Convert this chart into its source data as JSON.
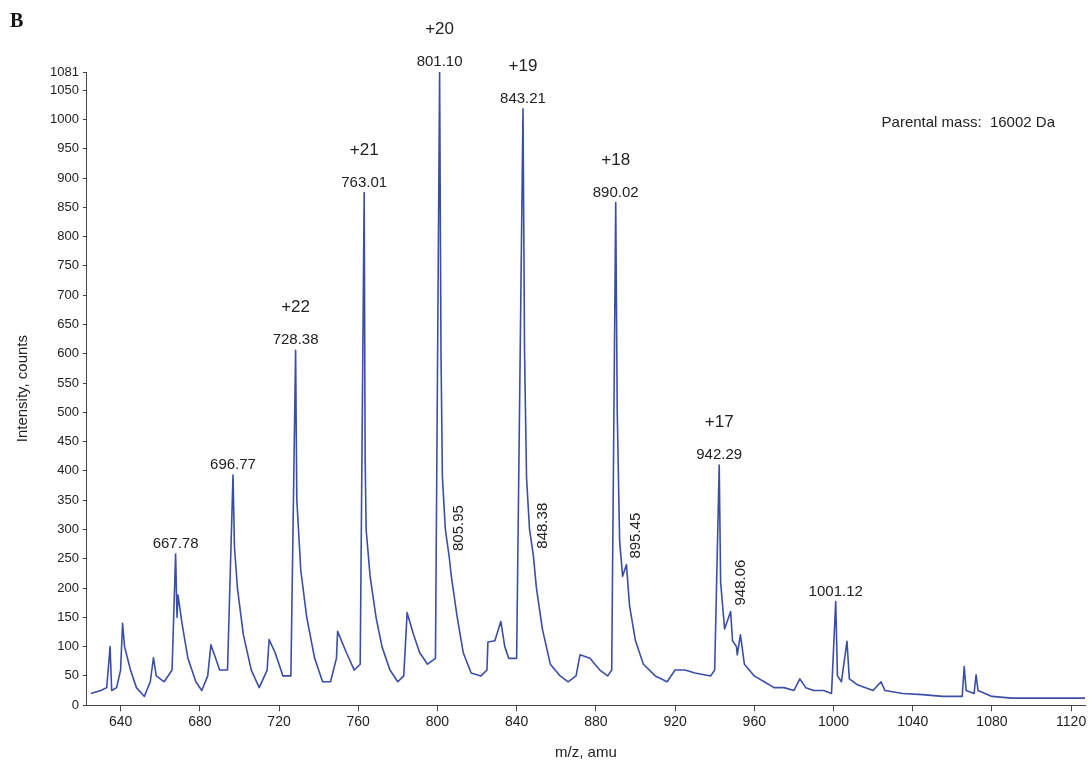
{
  "chart_data": {
    "type": "line",
    "title": "B",
    "xlabel": "m/z, amu",
    "ylabel": "Intensity, counts",
    "x": [
      625,
      630,
      633,
      634.7,
      635.5,
      638,
      640,
      641,
      642,
      645,
      648,
      652,
      655,
      656.6,
      658,
      662,
      666,
      667.78,
      668.5,
      669,
      671,
      674,
      678,
      681,
      684,
      685.6,
      688,
      690,
      694,
      696.77,
      697.5,
      699,
      702,
      706,
      710,
      714,
      715,
      718,
      722,
      726,
      728.38,
      729,
      731,
      734,
      738,
      742,
      746,
      749,
      749.6,
      754,
      758,
      761,
      763.01,
      763.5,
      764,
      766,
      769,
      772,
      776,
      780,
      783,
      784.7,
      788,
      791,
      795,
      799,
      801.1,
      801.8,
      802.5,
      804,
      805.95,
      807,
      810,
      813,
      817,
      822,
      825,
      825.5,
      829,
      832,
      834,
      836,
      840,
      843.21,
      844,
      845,
      846.5,
      848.38,
      850,
      853,
      857,
      862,
      866,
      870,
      872,
      877,
      882,
      886,
      888,
      890.02,
      890.8,
      892,
      893.5,
      895.45,
      897,
      900,
      904,
      910,
      916,
      920,
      925,
      930,
      938,
      940,
      942.29,
      943,
      945,
      948.06,
      949,
      951,
      951.4,
      953,
      955,
      960,
      965,
      970,
      975,
      980,
      983,
      986,
      990,
      995,
      999,
      1001.12,
      1002,
      1004,
      1006.8,
      1008,
      1012,
      1020,
      1024,
      1026,
      1035,
      1045,
      1055,
      1060,
      1065,
      1066,
      1067,
      1071,
      1072,
      1073,
      1080,
      1090,
      1100,
      1110,
      1120,
      1127
    ],
    "series": [
      {
        "color": "#3b4ea6",
        "values": [
          20,
          25,
          30,
          100,
          25,
          30,
          60,
          140,
          100,
          60,
          30,
          15,
          40,
          81,
          50,
          40,
          60,
          258,
          150,
          188,
          140,
          80,
          40,
          25,
          50,
          103,
          80,
          60,
          60,
          393,
          270,
          200,
          120,
          60,
          30,
          60,
          112,
          90,
          50,
          50,
          606,
          350,
          230,
          150,
          80,
          40,
          40,
          80,
          126,
          90,
          60,
          70,
          875,
          420,
          300,
          220,
          150,
          100,
          60,
          40,
          50,
          158,
          120,
          90,
          70,
          80,
          1081,
          600,
          390,
          300,
          253,
          220,
          150,
          90,
          55,
          50,
          60,
          108,
          110,
          143,
          100,
          80,
          80,
          1018,
          600,
          388,
          300,
          257,
          200,
          130,
          70,
          50,
          40,
          50,
          86,
          80,
          60,
          50,
          60,
          858,
          500,
          280,
          220,
          240,
          170,
          110,
          70,
          50,
          40,
          60,
          60,
          55,
          50,
          60,
          410,
          210,
          130,
          160,
          110,
          100,
          86,
          120,
          70,
          50,
          40,
          30,
          30,
          25,
          45,
          30,
          25,
          25,
          20,
          177,
          50,
          40,
          109,
          45,
          35,
          25,
          40,
          25,
          20,
          18,
          15,
          15,
          15,
          66,
          25,
          20,
          52,
          25,
          15,
          12,
          12,
          12,
          12,
          12
        ]
      }
    ],
    "xlim": [
      623,
      1127
    ],
    "xticks": [
      640,
      680,
      720,
      760,
      800,
      840,
      880,
      920,
      960,
      1000,
      1040,
      1080,
      1120
    ],
    "ylim": [
      0,
      1081
    ],
    "yticks": [
      0,
      50,
      100,
      150,
      200,
      250,
      300,
      350,
      400,
      450,
      500,
      550,
      600,
      650,
      700,
      750,
      800,
      850,
      900,
      950,
      1000,
      1050,
      1081
    ],
    "grid": false,
    "legend": false,
    "marker": "none",
    "line_style": "solid",
    "annotations": [
      "Parental mass:  16002 Da",
      {
        "text": "667.78",
        "x": 667.78,
        "y": 258
      },
      {
        "text": "696.77",
        "x": 696.77,
        "y": 393
      },
      {
        "text": "728.38",
        "x": 728.38,
        "y": 606
      },
      {
        "text": "+22",
        "x": 728.38,
        "y": 606
      },
      {
        "text": "763.01",
        "x": 763.01,
        "y": 875
      },
      {
        "text": "+21",
        "x": 763.01,
        "y": 875
      },
      {
        "text": "801.10",
        "x": 801.1,
        "y": 1081
      },
      {
        "text": "+20",
        "x": 801.1,
        "y": 1081
      },
      {
        "text": "805.95",
        "x": 805.95,
        "y": 253
      },
      {
        "text": "843.21",
        "x": 843.21,
        "y": 1018
      },
      {
        "text": "+19",
        "x": 843.21,
        "y": 1018
      },
      {
        "text": "848.38",
        "x": 848.38,
        "y": 257
      },
      {
        "text": "890.02",
        "x": 890.02,
        "y": 858
      },
      {
        "text": "+18",
        "x": 890.02,
        "y": 858
      },
      {
        "text": "895.45",
        "x": 895.45,
        "y": 240
      },
      {
        "text": "942.29",
        "x": 942.29,
        "y": 410
      },
      {
        "text": "+17",
        "x": 942.29,
        "y": 410
      },
      {
        "text": "948.06",
        "x": 948.06,
        "y": 160
      },
      {
        "text": "1001.12",
        "x": 1001.12,
        "y": 177
      }
    ]
  }
}
